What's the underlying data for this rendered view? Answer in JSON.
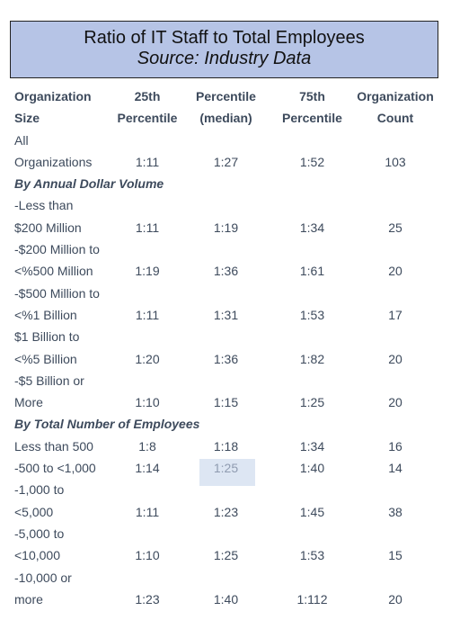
{
  "title": {
    "line1": "Ratio of IT Staff to Total Employees",
    "line2": "Source: Industry Data"
  },
  "header": {
    "row1": [
      "Organization",
      "25th",
      "Percentile",
      "75th",
      "Organization"
    ],
    "row2": [
      "Size",
      "Percentile",
      "(median)",
      "Percentile",
      "Count"
    ]
  },
  "rows": [
    {
      "label": "All",
      "values": [
        "",
        "",
        "",
        ""
      ]
    },
    {
      "label": "Organizations",
      "values": [
        "1:11",
        "1:27",
        "1:52",
        "103"
      ]
    },
    {
      "section": "By Annual Dollar Volume"
    },
    {
      "label": "-Less than",
      "values": [
        "",
        "",
        "",
        ""
      ]
    },
    {
      "label": "$200 Million",
      "values": [
        "1:11",
        "1:19",
        "1:34",
        "25"
      ]
    },
    {
      "label": "-$200 Million to",
      "values": [
        "",
        "",
        "",
        ""
      ]
    },
    {
      "label": "<%500 Million",
      "values": [
        "1:19",
        "1:36",
        "1:61",
        "20"
      ]
    },
    {
      "label": "-$500 Million to",
      "values": [
        "",
        "",
        "",
        ""
      ]
    },
    {
      "label": "<%1 Billion",
      "values": [
        "1:11",
        "1:31",
        "1:53",
        "17"
      ]
    },
    {
      "label": "$1 Billion to",
      "values": [
        "",
        "",
        "",
        ""
      ]
    },
    {
      "label": "<%5 Billion",
      "values": [
        "1:20",
        "1:36",
        "1:82",
        "20"
      ]
    },
    {
      "label": "-$5 Billion or",
      "values": [
        "",
        "",
        "",
        ""
      ]
    },
    {
      "label": "More",
      "values": [
        "1:10",
        "1:15",
        "1:25",
        "20"
      ]
    },
    {
      "section": "By Total Number of Employees"
    },
    {
      "label": "Less than 500",
      "values": [
        "1:8",
        "1:18",
        "1:34",
        "16"
      ]
    },
    {
      "label": "-500 to <1,000",
      "values": [
        "1:14",
        "1:25",
        "1:40",
        "14"
      ],
      "highlight": true
    },
    {
      "label": "-1,000 to",
      "values": [
        "",
        "",
        "",
        ""
      ]
    },
    {
      "label": "<5,000",
      "values": [
        "1:11",
        "1:23",
        "1:45",
        "38"
      ]
    },
    {
      "label": "-5,000 to",
      "values": [
        "",
        "",
        "",
        ""
      ]
    },
    {
      "label": "<10,000",
      "values": [
        "1:10",
        "1:25",
        "1:53",
        "15"
      ]
    },
    {
      "label": "-10,000 or",
      "values": [
        "",
        "",
        "",
        ""
      ]
    },
    {
      "label": "more",
      "values": [
        "1:23",
        "1:40",
        "1:112",
        "20"
      ]
    }
  ]
}
